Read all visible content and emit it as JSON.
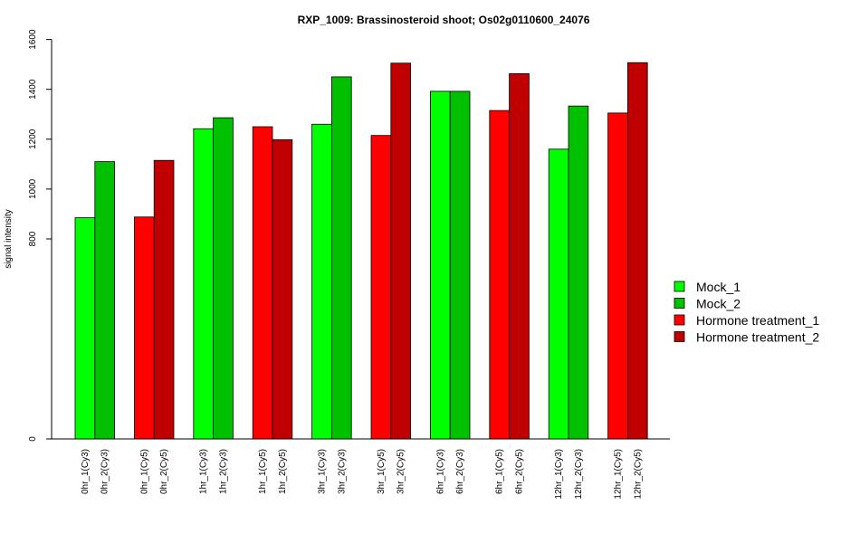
{
  "chart_data": {
    "type": "bar",
    "title": "RXP_1009: Brassinosteroid shoot; Os02g0110600_24076",
    "xlabel": "",
    "ylabel": "signal intensity",
    "ylim": [
      0,
      1600
    ],
    "y_ticks": [
      "0",
      "800",
      "1000",
      "1200",
      "1400",
      "1600"
    ],
    "y_tick_values": [
      0,
      800,
      1000,
      1200,
      1400,
      1600
    ],
    "y_scale": "piecewise (0 to 800 compressed)",
    "grid": false,
    "legend_position": "right",
    "legend": [
      {
        "name": "Mock_1",
        "color": "#00ff00"
      },
      {
        "name": "Mock_2",
        "color": "#00c000"
      },
      {
        "name": "Hormone treatment_1",
        "color": "#ff0000"
      },
      {
        "name": "Hormone treatment_2",
        "color": "#c00000"
      }
    ],
    "groups": [
      {
        "bars": [
          {
            "label": "0hr_1(Cy3)",
            "value": 885,
            "color": "#00ff00"
          },
          {
            "label": "0hr_2(Cy3)",
            "value": 1110,
            "color": "#00c000"
          }
        ]
      },
      {
        "bars": [
          {
            "label": "0hr_1(Cy5)",
            "value": 888,
            "color": "#ff0000"
          },
          {
            "label": "0hr_2(Cy5)",
            "value": 1115,
            "color": "#c00000"
          }
        ]
      },
      {
        "bars": [
          {
            "label": "1hr_1(Cy3)",
            "value": 1242,
            "color": "#00ff00"
          },
          {
            "label": "1hr_2(Cy3)",
            "value": 1286,
            "color": "#00c000"
          }
        ]
      },
      {
        "bars": [
          {
            "label": "1hr_1(Cy5)",
            "value": 1250,
            "color": "#ff0000"
          },
          {
            "label": "1hr_2(Cy5)",
            "value": 1198,
            "color": "#c00000"
          }
        ]
      },
      {
        "bars": [
          {
            "label": "3hr_1(Cy3)",
            "value": 1260,
            "color": "#00ff00"
          },
          {
            "label": "3hr_2(Cy3)",
            "value": 1450,
            "color": "#00c000"
          }
        ]
      },
      {
        "bars": [
          {
            "label": "3hr_1(Cy5)",
            "value": 1215,
            "color": "#ff0000"
          },
          {
            "label": "3hr_2(Cy5)",
            "value": 1505,
            "color": "#c00000"
          }
        ]
      },
      {
        "bars": [
          {
            "label": "6hr_1(Cy3)",
            "value": 1392,
            "color": "#00ff00"
          },
          {
            "label": "6hr_2(Cy3)",
            "value": 1392,
            "color": "#00c000"
          }
        ]
      },
      {
        "bars": [
          {
            "label": "6hr_1(Cy5)",
            "value": 1315,
            "color": "#ff0000"
          },
          {
            "label": "6hr_2(Cy5)",
            "value": 1463,
            "color": "#c00000"
          }
        ]
      },
      {
        "bars": [
          {
            "label": "12hr_1(Cy3)",
            "value": 1160,
            "color": "#00ff00"
          },
          {
            "label": "12hr_2(Cy3)",
            "value": 1333,
            "color": "#00c000"
          }
        ]
      },
      {
        "bars": [
          {
            "label": "12hr_1(Cy5)",
            "value": 1305,
            "color": "#ff0000"
          },
          {
            "label": "12hr_2(Cy5)",
            "value": 1507,
            "color": "#c00000"
          }
        ]
      }
    ]
  }
}
